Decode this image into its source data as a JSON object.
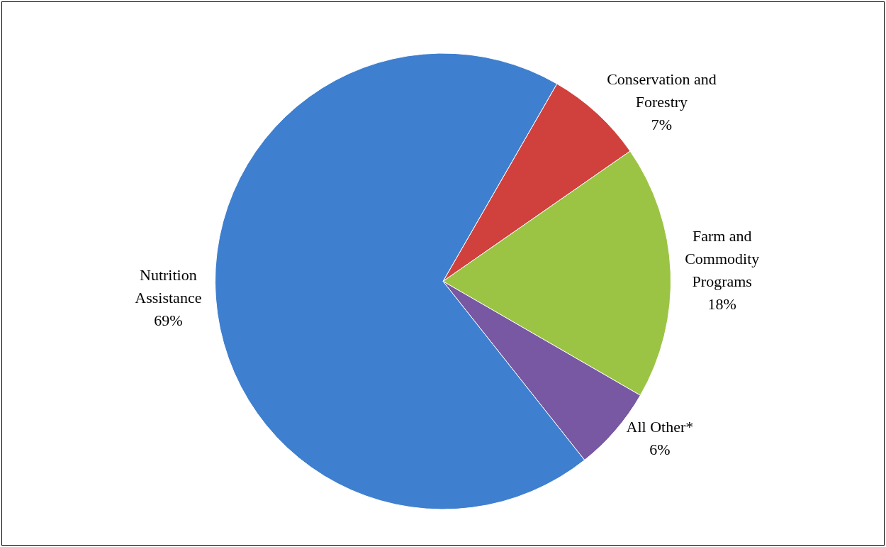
{
  "chart_data": {
    "type": "pie",
    "categories": [
      "Conservation and Forestry",
      "Farm and Commodity Programs",
      "All Other*",
      "Nutrition Assistance"
    ],
    "values": [
      7,
      18,
      6,
      69
    ],
    "colors": [
      "#d0413e",
      "#9bc444",
      "#7857a3",
      "#3f7fcf"
    ],
    "value_labels": [
      "7%",
      "18%",
      "6%",
      "69%"
    ],
    "legend": false
  }
}
